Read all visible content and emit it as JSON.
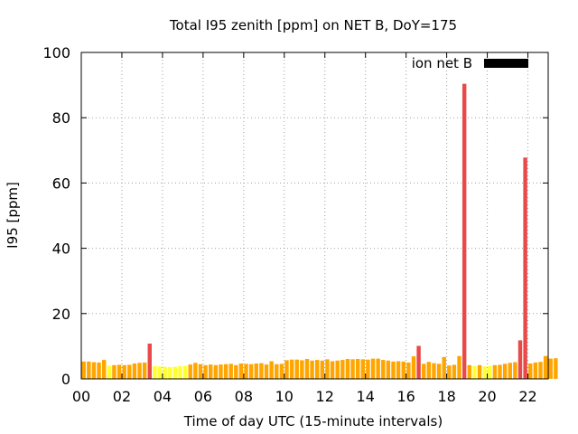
{
  "chart_data": {
    "type": "bar",
    "title": "Total I95 zenith [ppm] on NET B, DoY=175",
    "xlabel": "Time of day UTC (15-minute intervals)",
    "ylabel": "I95 [ppm]",
    "ylim": [
      0,
      100
    ],
    "xlim": [
      0,
      23
    ],
    "bin_width_hours": 0.25,
    "x_ticks": [
      "00",
      "02",
      "04",
      "06",
      "08",
      "10",
      "12",
      "14",
      "16",
      "18",
      "20",
      "22"
    ],
    "y_ticks": [
      "0",
      "20",
      "40",
      "60",
      "80",
      "100"
    ],
    "grid": true,
    "legend": {
      "position": "top-right",
      "label": "ion net B",
      "color": "#000000"
    },
    "colors": {
      "low": "#ffff33",
      "mid": "#ffa500",
      "high": "#e84a4a"
    },
    "values": [
      5.3,
      5.3,
      5.1,
      5.0,
      5.8,
      4.0,
      4.2,
      4.3,
      4.2,
      4.3,
      4.7,
      4.9,
      5.0,
      10.8,
      3.9,
      3.8,
      3.7,
      3.6,
      3.7,
      3.9,
      4.0,
      4.4,
      4.9,
      4.5,
      4.2,
      4.4,
      4.2,
      4.4,
      4.5,
      4.6,
      4.2,
      4.7,
      4.6,
      4.5,
      4.7,
      4.8,
      4.4,
      5.4,
      4.5,
      4.6,
      5.7,
      5.9,
      5.9,
      5.7,
      6.1,
      5.6,
      5.8,
      5.6,
      6.0,
      5.4,
      5.6,
      5.8,
      6.1,
      6.0,
      6.1,
      6.0,
      5.9,
      6.2,
      6.2,
      5.8,
      5.6,
      5.3,
      5.4,
      5.3,
      5.0,
      6.9,
      10.1,
      4.6,
      5.2,
      4.8,
      4.6,
      6.7,
      4.1,
      4.3,
      7.0,
      90.4,
      4.2,
      3.9,
      4.2,
      3.8,
      3.9,
      4.2,
      4.3,
      4.6,
      4.9,
      5.1,
      11.8,
      67.8,
      4.7,
      5.0,
      5.2,
      7.0,
      6.2,
      6.3
    ]
  }
}
